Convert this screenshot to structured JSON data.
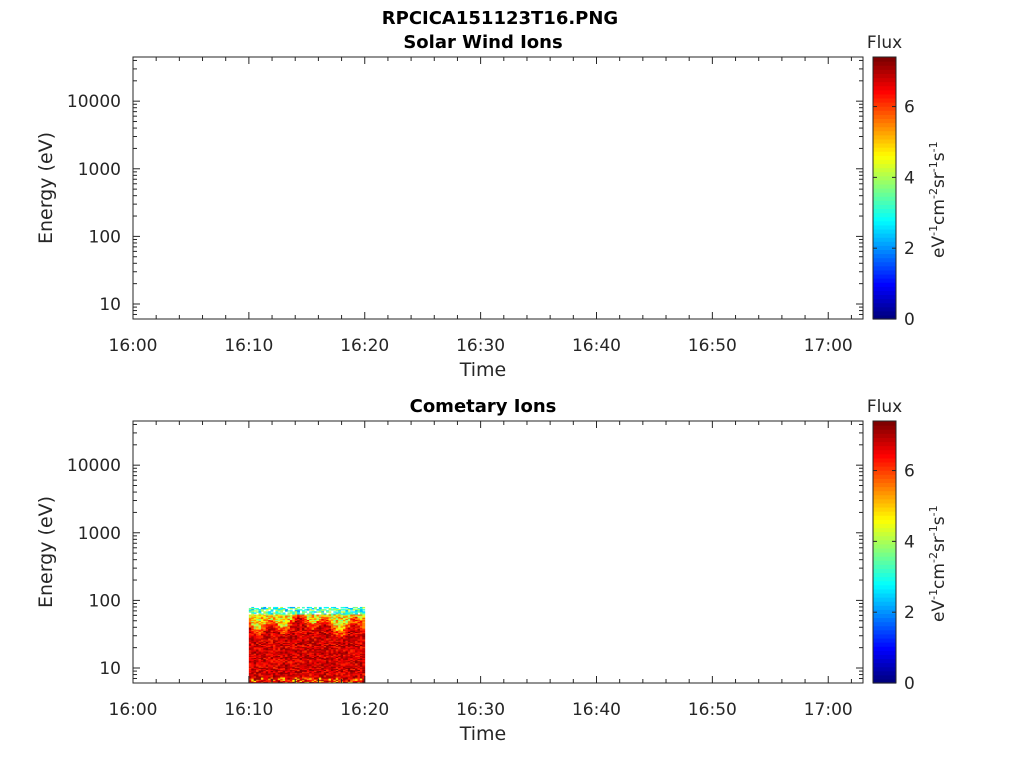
{
  "figure": {
    "title": "RPCICA151123T16.PNG"
  },
  "chart_data": [
    {
      "type": "heatmap",
      "title": "Solar Wind Ions",
      "xlabel": "Time",
      "ylabel": "Energy (eV)",
      "x_ticks": [
        "16:00",
        "16:10",
        "16:20",
        "16:30",
        "16:40",
        "16:50",
        "17:00"
      ],
      "xlim": [
        "16:00",
        "17:03"
      ],
      "y_scale": "log",
      "y_ticks": [
        "10",
        "10000",
        "1000",
        "100"
      ],
      "y_tick_values": [
        10,
        10000,
        1000,
        100
      ],
      "ylim": [
        6,
        45000
      ],
      "colorbar": {
        "title": "Flux",
        "label": "eV⁻¹cm⁻²sr⁻¹s⁻¹",
        "label_parts": [
          "eV",
          "-1",
          "cm",
          "-2",
          "sr",
          "-1",
          "s",
          "-1"
        ],
        "ticks": [
          "0",
          "2",
          "4",
          "6"
        ],
        "tick_values": [
          0,
          2,
          4,
          6
        ],
        "range": [
          0,
          7.4
        ],
        "colormap": "jet"
      },
      "data_blocks": []
    },
    {
      "type": "heatmap",
      "title": "Cometary Ions",
      "xlabel": "Time",
      "ylabel": "Energy (eV)",
      "x_ticks": [
        "16:00",
        "16:10",
        "16:20",
        "16:30",
        "16:40",
        "16:50",
        "17:00"
      ],
      "xlim": [
        "16:00",
        "17:03"
      ],
      "y_scale": "log",
      "y_ticks": [
        "10",
        "10000",
        "1000",
        "100"
      ],
      "y_tick_values": [
        10,
        10000,
        1000,
        100
      ],
      "ylim": [
        6,
        45000
      ],
      "colorbar": {
        "title": "Flux",
        "label": "eV⁻¹cm⁻²sr⁻¹s⁻¹",
        "label_parts": [
          "eV",
          "-1",
          "cm",
          "-2",
          "sr",
          "-1",
          "s",
          "-1"
        ],
        "ticks": [
          "0",
          "2",
          "4",
          "6"
        ],
        "tick_values": [
          0,
          2,
          4,
          6
        ],
        "range": [
          0,
          7.4
        ],
        "colormap": "jet"
      },
      "data_blocks": [
        {
          "time_start": "16:10",
          "time_end": "16:20",
          "energy_min": 6,
          "energy_max": 80,
          "flux_core": 6.8
        }
      ]
    }
  ]
}
